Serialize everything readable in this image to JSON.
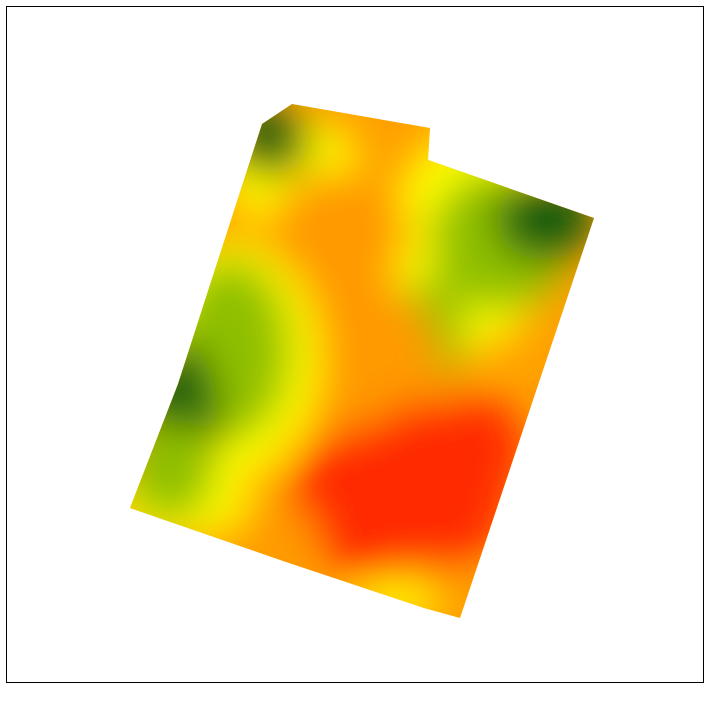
{
  "map": {
    "type": "interpolated-surface-heatmap",
    "color_ramp": {
      "low": "#0b5a0b",
      "low_mid": "#8fbf00",
      "mid": "#ffff00",
      "high_mid": "#ff9a00",
      "high": "#ff2a00"
    },
    "frame_color": "#000000",
    "background": "#ffffff"
  }
}
